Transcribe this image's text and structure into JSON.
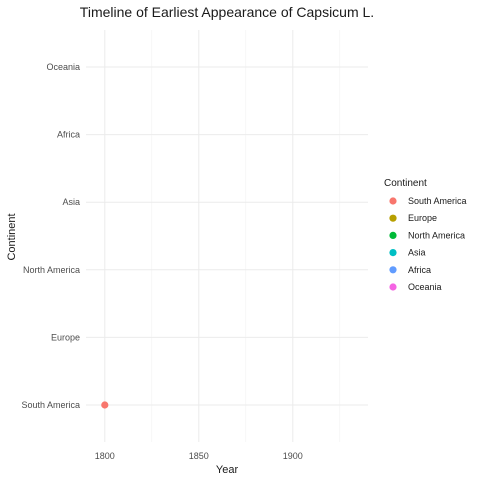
{
  "chart_data": {
    "type": "scatter",
    "title": "Timeline of Earliest Appearance of Capsicum L.",
    "xlabel": "Year",
    "ylabel": "Continent",
    "xlim": [
      1790,
      1940
    ],
    "x_ticks": [
      1800,
      1850,
      1900
    ],
    "categories": [
      "South America",
      "Europe",
      "North America",
      "Asia",
      "Africa",
      "Oceania"
    ],
    "grid": true,
    "legend": {
      "title": "Continent",
      "position": "right",
      "entries": [
        {
          "label": "South America",
          "color": "#F8766D"
        },
        {
          "label": "Europe",
          "color": "#B79F00"
        },
        {
          "label": "North America",
          "color": "#00BA38"
        },
        {
          "label": "Asia",
          "color": "#00BFC4"
        },
        {
          "label": "Africa",
          "color": "#619CFF"
        },
        {
          "label": "Oceania",
          "color": "#F564E3"
        }
      ]
    },
    "points": [
      {
        "x": 1800,
        "category": "South America",
        "color": "#F8766D"
      }
    ]
  }
}
